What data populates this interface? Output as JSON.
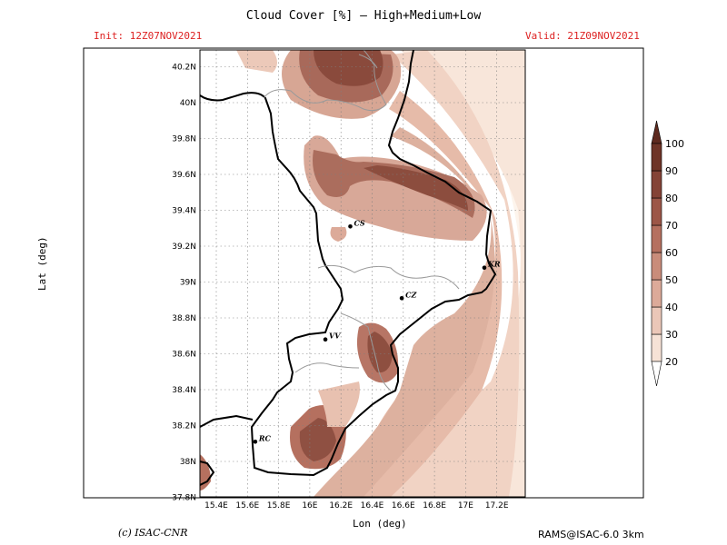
{
  "header": {
    "title": "Cloud Cover [%] — High+Medium+Low",
    "init": "Init: 12Z07NOV2021",
    "valid": "Valid: 21Z09NOV2021"
  },
  "axes": {
    "xlabel": "Lon (deg)",
    "ylabel": "Lat (deg)",
    "lon_ticks": [
      "15.4E",
      "15.6E",
      "15.8E",
      "16E",
      "16.2E",
      "16.4E",
      "16.6E",
      "16.8E",
      "17E",
      "17.2E"
    ],
    "lat_ticks": [
      "37.8N",
      "38N",
      "38.2N",
      "38.4N",
      "38.6N",
      "38.8N",
      "39N",
      "39.2N",
      "39.4N",
      "39.6N",
      "39.8N",
      "40N",
      "40.2N"
    ]
  },
  "cities": [
    {
      "name": "CS",
      "lon": 16.26,
      "lat": 39.31
    },
    {
      "name": "KR",
      "lon": 17.12,
      "lat": 39.08
    },
    {
      "name": "CZ",
      "lon": 16.59,
      "lat": 38.91
    },
    {
      "name": "VV",
      "lon": 16.1,
      "lat": 38.68
    },
    {
      "name": "RC",
      "lon": 15.65,
      "lat": 38.11
    }
  ],
  "colorbar": {
    "labels": [
      "20",
      "30",
      "40",
      "50",
      "60",
      "70",
      "80",
      "90",
      "100"
    ],
    "colors": [
      "#fdf4ec",
      "#f6e2d6",
      "#ebc7b8",
      "#dcaa99",
      "#c98c7a",
      "#b5705f",
      "#9c5647",
      "#844336",
      "#6e3427"
    ]
  },
  "footer": {
    "credit": "(c) ISAC-CNR",
    "model": "RAMS@ISAC-6.0 3km"
  }
}
